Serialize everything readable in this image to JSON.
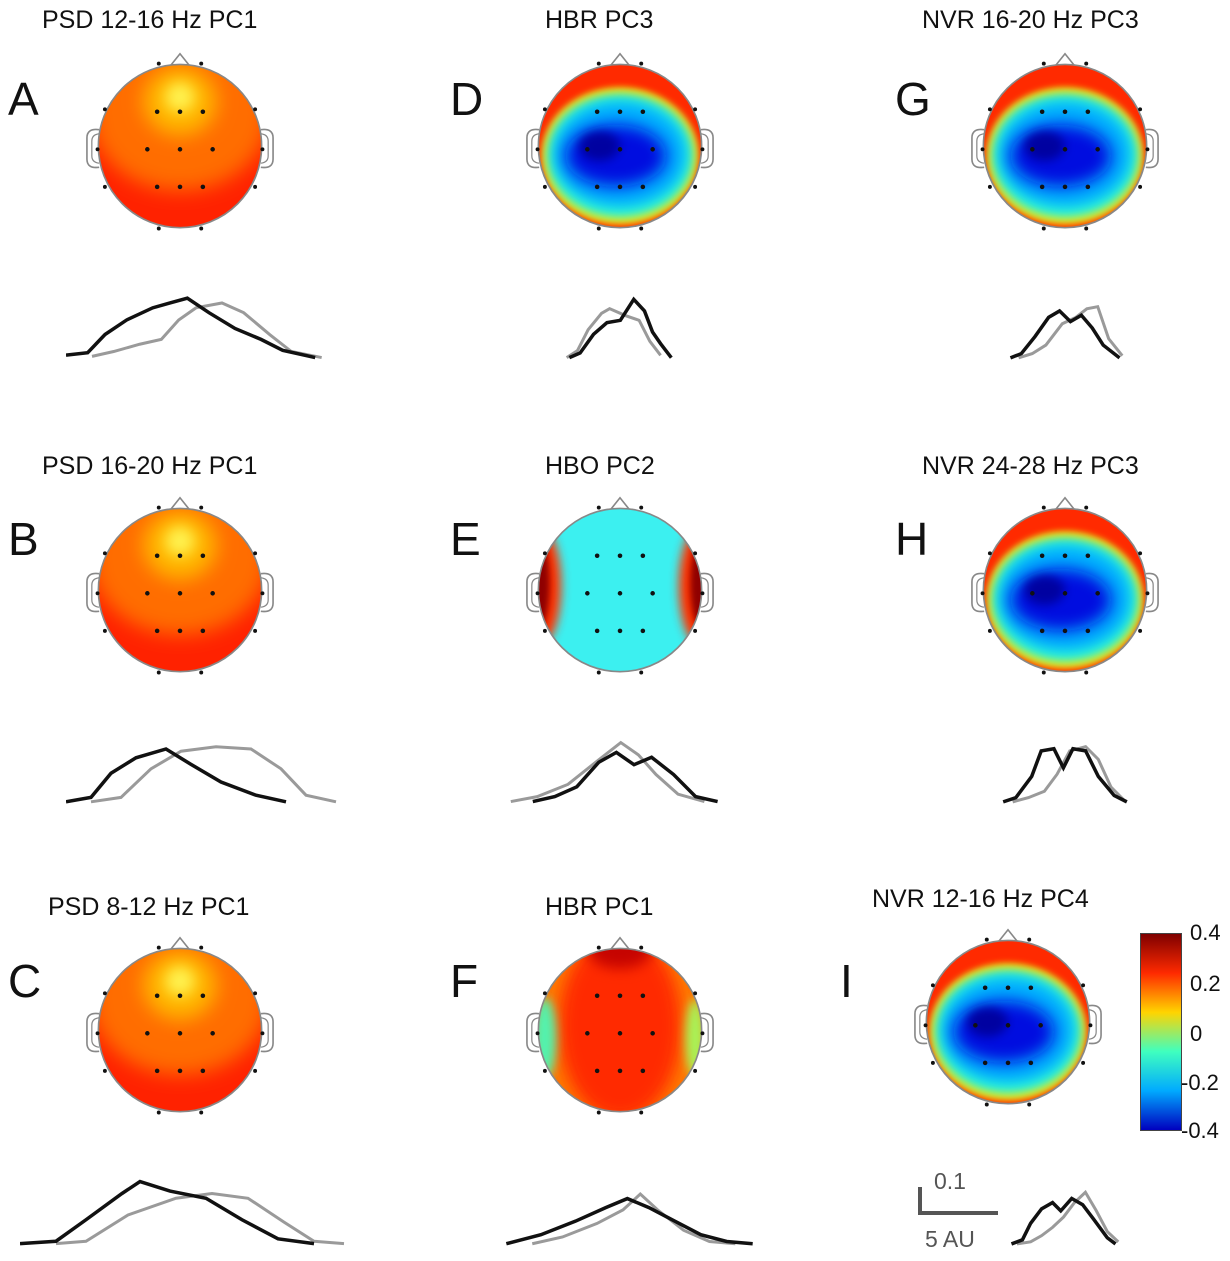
{
  "panels": [
    {
      "letter": "A",
      "title": "PSD 12-16 Hz   PC1",
      "pattern": "frontal-peak"
    },
    {
      "letter": "B",
      "title": "PSD 16-20 Hz   PC1",
      "pattern": "frontal-peak"
    },
    {
      "letter": "C",
      "title": "PSD 8-12 Hz   PC1",
      "pattern": "frontal-peak"
    },
    {
      "letter": "D",
      "title": "HBR    PC3",
      "pattern": "ring-blue-center"
    },
    {
      "letter": "E",
      "title": "HBO    PC2",
      "pattern": "lateral-red"
    },
    {
      "letter": "F",
      "title": "HBR    PC1",
      "pattern": "central-red"
    },
    {
      "letter": "G",
      "title": "NVR 16-20 Hz   PC3",
      "pattern": "ring-blue-center"
    },
    {
      "letter": "H",
      "title": "NVR 24-28 Hz   PC3",
      "pattern": "ring-blue-center"
    },
    {
      "letter": "I",
      "title": "NVR 12-16 Hz   PC4",
      "pattern": "ring-blue-center"
    }
  ],
  "colorbar": {
    "ticks": [
      "0.4",
      "0.2",
      "0",
      "-0.2",
      "-0.4"
    ],
    "colors": [
      "#7f0000",
      "#ff2a00",
      "#ffd400",
      "#3fffbf",
      "#00aaff",
      "#0000bf"
    ]
  },
  "scale_bar": {
    "vertical_label": "0.1",
    "horizontal_label": "5 AU"
  },
  "trace_colors": {
    "group1": "#111111",
    "group2": "#9a9a9a"
  }
}
